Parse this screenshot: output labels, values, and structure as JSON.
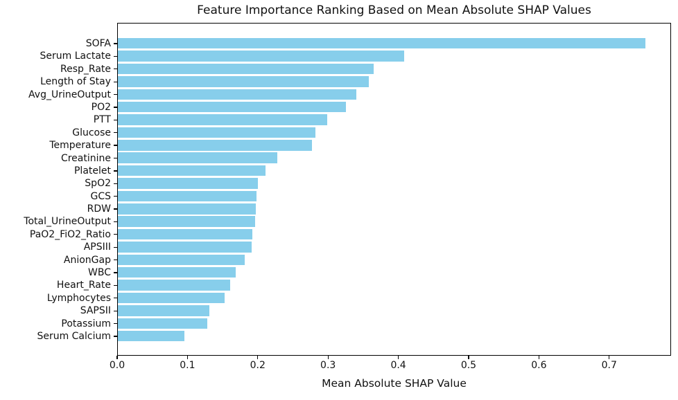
{
  "chart_data": {
    "type": "bar",
    "orientation": "horizontal",
    "title": "Feature Importance Ranking Based on Mean Absolute SHAP Values",
    "xlabel": "Mean Absolute SHAP Value",
    "ylabel": "",
    "categories": [
      "SOFA",
      "Serum Lactate",
      "Resp_Rate",
      "Length of Stay",
      "Avg_UrineOutput",
      "PO2",
      "PTT",
      "Glucose",
      "Temperature",
      "Creatinine",
      "Platelet",
      "SpO2",
      "GCS",
      "RDW",
      "Total_UrineOutput",
      "PaO2_FiO2_Ratio",
      "APSIII",
      "AnionGap",
      "WBC",
      "Heart_Rate",
      "Lymphocytes",
      "SAPSII",
      "Potassium",
      "Serum Calcium"
    ],
    "values": [
      0.751,
      0.407,
      0.364,
      0.357,
      0.339,
      0.324,
      0.298,
      0.281,
      0.276,
      0.227,
      0.21,
      0.199,
      0.197,
      0.196,
      0.195,
      0.191,
      0.19,
      0.18,
      0.168,
      0.16,
      0.152,
      0.13,
      0.127,
      0.095
    ],
    "xlim": [
      0,
      0.788
    ],
    "xtick_values": [
      0.0,
      0.1,
      0.2,
      0.3,
      0.4,
      0.5,
      0.6,
      0.7
    ],
    "xtick_labels": [
      "0.0",
      "0.1",
      "0.2",
      "0.3",
      "0.4",
      "0.5",
      "0.6",
      "0.7"
    ],
    "bar_color": "#87CEEB",
    "grid": false,
    "legend": null
  }
}
